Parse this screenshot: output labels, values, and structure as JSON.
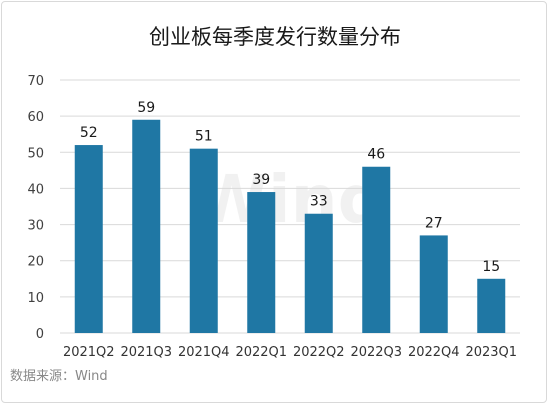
{
  "chart_data": {
    "type": "bar",
    "title": "创业板每季度发行数量分布",
    "categories": [
      "2021Q2",
      "2021Q3",
      "2021Q4",
      "2022Q1",
      "2022Q2",
      "2022Q3",
      "2022Q4",
      "2023Q1"
    ],
    "values": [
      52,
      59,
      51,
      39,
      33,
      46,
      27,
      15
    ],
    "ylim": [
      0,
      70
    ],
    "yticks": [
      0,
      10,
      20,
      30,
      40,
      50,
      60,
      70
    ],
    "xlabel": "",
    "ylabel": "",
    "grid": true,
    "bar_color": "#1f77a4",
    "source": "数据来源：Wind",
    "watermark": "Wind"
  }
}
